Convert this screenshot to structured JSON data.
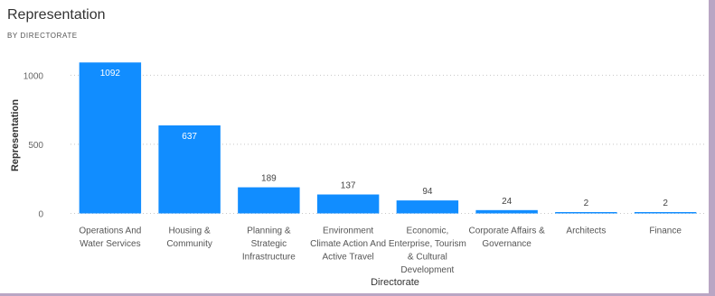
{
  "chart_data": {
    "type": "bar",
    "title": "Representation",
    "subtitle": "BY DIRECTORATE",
    "xlabel": "Directorate",
    "ylabel": "Representation",
    "ylim": [
      0,
      1100
    ],
    "yticks": [
      0,
      500,
      1000
    ],
    "grid": "horizontal dotted",
    "legend": "none",
    "bar_color": "#118dff",
    "categories": [
      [
        "Operations And",
        "Water Services"
      ],
      [
        "Housing &",
        "Community"
      ],
      [
        "Planning &",
        "Strategic",
        "Infrastructure"
      ],
      [
        "Environment",
        "Climate Action And",
        "Active Travel"
      ],
      [
        "Economic,",
        "Enterprise, Tourism",
        "& Cultural",
        "Development"
      ],
      [
        "Corporate Affairs &",
        "Governance"
      ],
      [
        "Architects"
      ],
      [
        "Finance"
      ]
    ],
    "values": [
      1092,
      637,
      189,
      137,
      94,
      24,
      2,
      2
    ],
    "data_labels": [
      "1092",
      "637",
      "189",
      "137",
      "94",
      "24",
      "2",
      "2"
    ]
  }
}
